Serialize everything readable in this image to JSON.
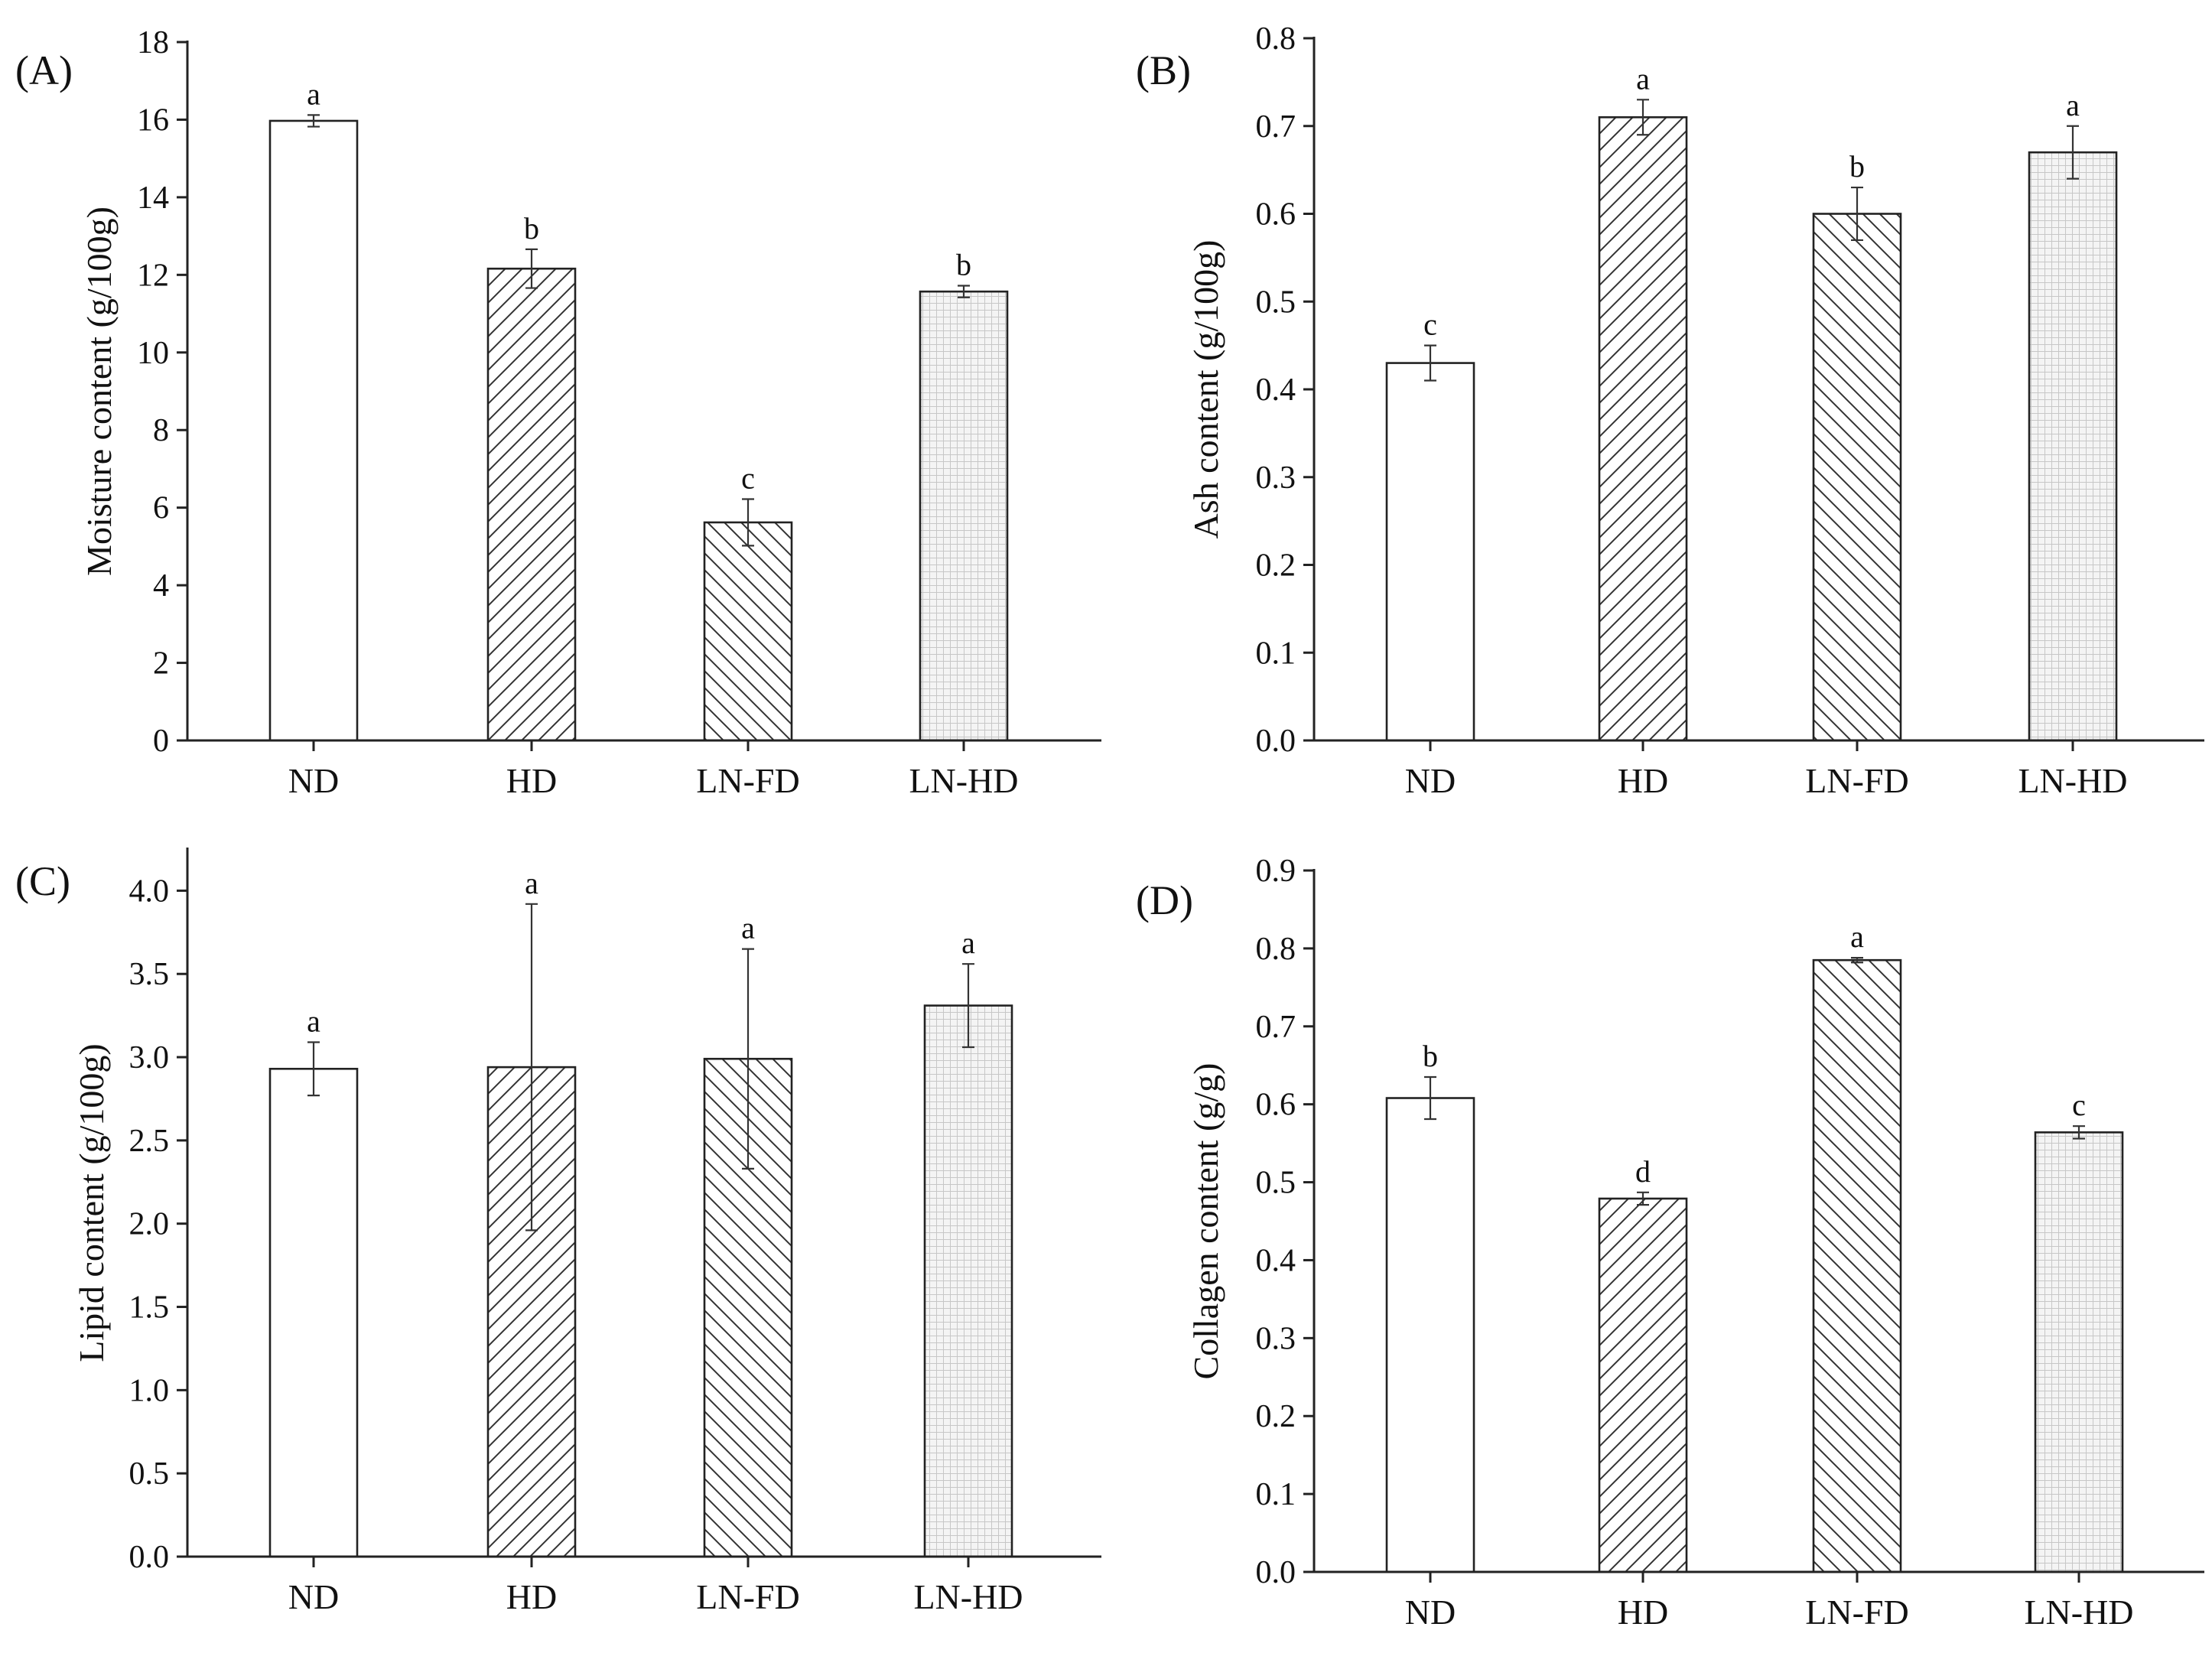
{
  "figure": {
    "background": "#ffffff",
    "ink_color": "#222222"
  },
  "chart_data": [
    {
      "type": "bar",
      "panel": "(A)",
      "categories": [
        "ND",
        "HD",
        "LN-FD",
        "LN-HD"
      ],
      "values": [
        15.97,
        12.16,
        5.62,
        11.57
      ],
      "errors": [
        0.15,
        0.5,
        0.6,
        0.15
      ],
      "significance": [
        "a",
        "b",
        "c",
        "b"
      ],
      "ylabel": "Moisture content (g/100g)",
      "xlabel": "",
      "ylim": [
        0,
        18
      ],
      "yticks": [
        0,
        2,
        4,
        6,
        8,
        10,
        12,
        14,
        16,
        18
      ],
      "ytick_labels": [
        "0",
        "2",
        "4",
        "6",
        "8",
        "10",
        "12",
        "14",
        "16",
        "18"
      ],
      "patterns": [
        "blank",
        "hatch-right",
        "hatch-left",
        "grid"
      ]
    },
    {
      "type": "bar",
      "panel": "(B)",
      "categories": [
        "ND",
        "HD",
        "LN-FD",
        "LN-HD"
      ],
      "values": [
        0.43,
        0.71,
        0.6,
        0.67
      ],
      "errors": [
        0.02,
        0.02,
        0.03,
        0.03
      ],
      "significance": [
        "c",
        "a",
        "b",
        "a"
      ],
      "ylabel": "Ash content (g/100g)",
      "xlabel": "",
      "ylim": [
        0,
        0.8
      ],
      "yticks": [
        0,
        0.1,
        0.2,
        0.3,
        0.4,
        0.5,
        0.6,
        0.7,
        0.8
      ],
      "ytick_labels": [
        "0.0",
        "0.1",
        "0.2",
        "0.3",
        "0.4",
        "0.5",
        "0.6",
        "0.7",
        "0.8"
      ],
      "patterns": [
        "blank",
        "hatch-right",
        "hatch-left",
        "grid"
      ]
    },
    {
      "type": "bar",
      "panel": "(C)",
      "categories": [
        "ND",
        "HD",
        "LN-FD",
        "LN-HD"
      ],
      "values": [
        2.93,
        2.94,
        2.99,
        3.31
      ],
      "errors": [
        0.16,
        0.98,
        0.66,
        0.25
      ],
      "significance": [
        "a",
        "a",
        "a",
        "a"
      ],
      "ylabel": "Lipid content (g/100g)",
      "xlabel": "",
      "ylim": [
        0,
        4.25
      ],
      "yticks": [
        0,
        0.5,
        1,
        1.5,
        2,
        2.5,
        3,
        3.5,
        4
      ],
      "ytick_labels": [
        "0.0",
        "0.5",
        "1.0",
        "1.5",
        "2.0",
        "2.5",
        "3.0",
        "3.5",
        "4.0"
      ],
      "patterns": [
        "blank",
        "hatch-right",
        "hatch-left",
        "grid"
      ]
    },
    {
      "type": "bar",
      "panel": "(D)",
      "categories": [
        "ND",
        "HD",
        "LN-FD",
        "LN-HD"
      ],
      "values": [
        0.608,
        0.479,
        0.785,
        0.564
      ],
      "errors": [
        0.027,
        0.008,
        0.003,
        0.008
      ],
      "significance": [
        "b",
        "d",
        "a",
        "c"
      ],
      "ylabel": "Collagen content (g/g)",
      "xlabel": "",
      "ylim": [
        0,
        0.9
      ],
      "yticks": [
        0,
        0.1,
        0.2,
        0.3,
        0.4,
        0.5,
        0.6,
        0.7,
        0.8,
        0.9
      ],
      "ytick_labels": [
        "0.0",
        "0.1",
        "0.2",
        "0.3",
        "0.4",
        "0.5",
        "0.6",
        "0.7",
        "0.8",
        "0.9"
      ],
      "patterns": [
        "blank",
        "hatch-right",
        "hatch-left",
        "grid"
      ]
    }
  ]
}
